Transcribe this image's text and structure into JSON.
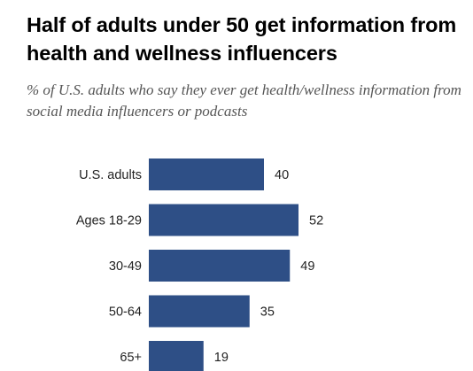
{
  "chart_data": {
    "type": "bar",
    "orientation": "horizontal",
    "title": "Half of adults under 50 get information from health and wellness influencers",
    "subtitle": "% of U.S. adults who say they ever get health/wellness information from social media influencers or podcasts",
    "categories": [
      "U.S. adults",
      "Ages 18-29",
      "30-49",
      "50-64",
      "65+"
    ],
    "values": [
      40,
      52,
      49,
      35,
      19
    ],
    "bar_color": "#2e4f86",
    "xlim": [
      0,
      100
    ],
    "grid": false,
    "legend": "none"
  }
}
